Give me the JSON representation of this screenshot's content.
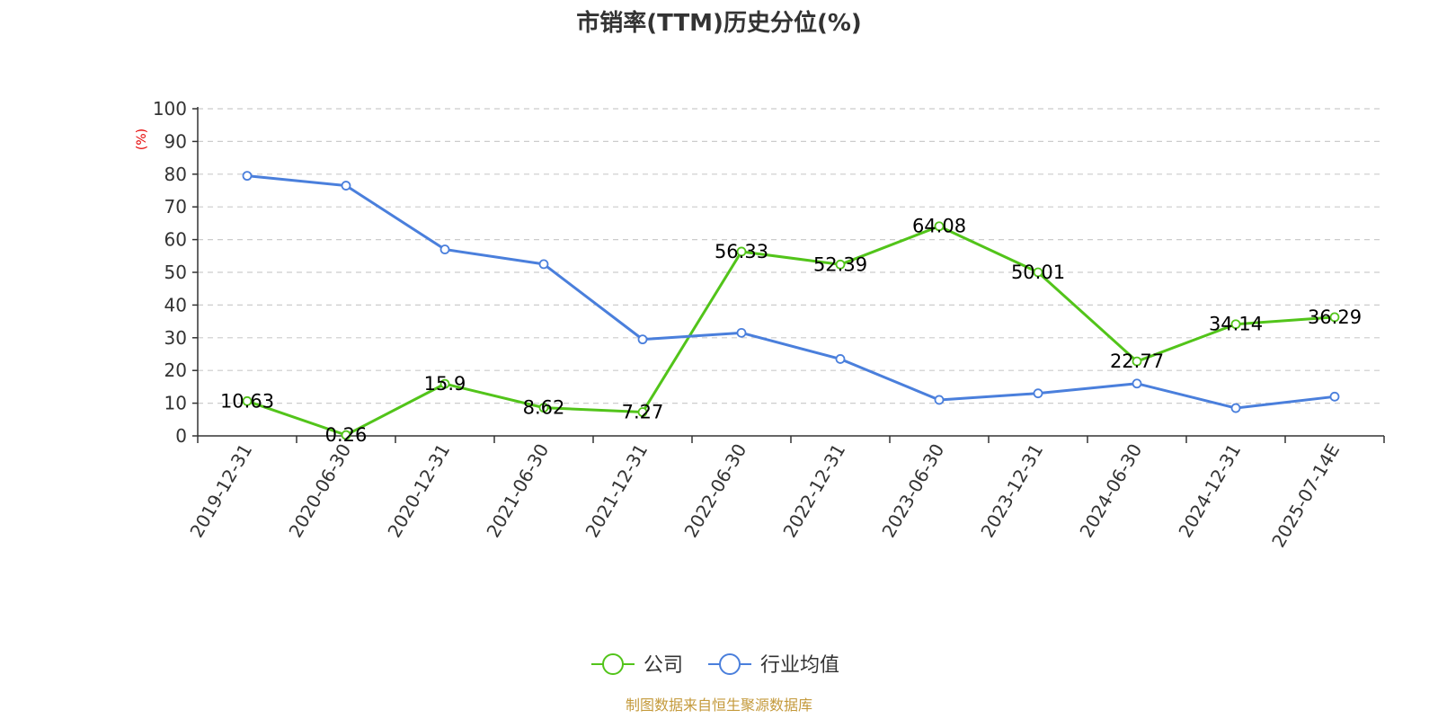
{
  "chart_data": {
    "type": "line",
    "title": "市销率(TTM)历史分位(%)",
    "ylabel": "(%)",
    "xlabel": "",
    "ylim": [
      0,
      100
    ],
    "yticks": [
      0,
      10,
      20,
      30,
      40,
      50,
      60,
      70,
      80,
      90,
      100
    ],
    "categories": [
      "2019-12-31",
      "2020-06-30",
      "2020-12-31",
      "2021-06-30",
      "2021-12-31",
      "2022-06-30",
      "2022-12-31",
      "2023-06-30",
      "2023-12-31",
      "2024-06-30",
      "2024-12-31",
      "2025-07-14E"
    ],
    "series": [
      {
        "name": "公司",
        "color": "#52c41a",
        "show_labels": true,
        "values": [
          10.63,
          0.26,
          15.9,
          8.62,
          7.27,
          56.33,
          52.39,
          64.08,
          50.01,
          22.77,
          34.14,
          36.29
        ],
        "labels": [
          "10.63",
          "0.26",
          "15.9",
          "8.62",
          "7.27",
          "56.33",
          "52.39",
          "64.08",
          "50.01",
          "22.77",
          "34.14",
          "36.29"
        ]
      },
      {
        "name": "行业均值",
        "color": "#4a7fdc",
        "show_labels": false,
        "values": [
          79.5,
          76.5,
          57.0,
          52.5,
          29.5,
          31.5,
          23.5,
          11.0,
          13.0,
          16.0,
          8.5,
          12.0
        ]
      }
    ],
    "grid": true,
    "legend_position": "bottom",
    "source": "制图数据来自恒生聚源数据库"
  },
  "colors": {
    "ylabel": "#e60000",
    "source": "#c49a3c",
    "grid": "#cccccc",
    "axis": "#333333"
  }
}
